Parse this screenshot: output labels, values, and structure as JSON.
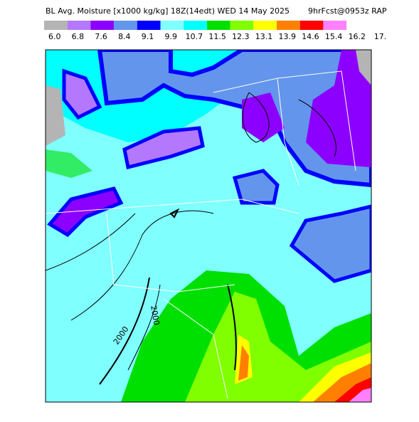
{
  "header": {
    "title": "BL Avg. Moisture [x1000 kg/kg] 18Z(14edt) WED 14 May 2025",
    "subtitle": "9hrFcst@0953z RAP"
  },
  "colorbar": [
    {
      "label": "6.0",
      "color": "#b4b4b4"
    },
    {
      "label": "6.8",
      "color": "#b478ff"
    },
    {
      "label": "7.6",
      "color": "#8c00ff"
    },
    {
      "label": "8.4",
      "color": "#6495ed"
    },
    {
      "label": "9.1",
      "color": "#0000ff"
    },
    {
      "label": "9.9",
      "color": "#80ffff"
    },
    {
      "label": "10.7",
      "color": "#00ffff"
    },
    {
      "label": "11.5",
      "color": "#00e000"
    },
    {
      "label": "12.3",
      "color": "#80ff00"
    },
    {
      "label": "13.1",
      "color": "#ffff00"
    },
    {
      "label": "13.9",
      "color": "#ff8000"
    },
    {
      "label": "14.6",
      "color": "#ff0000"
    },
    {
      "label": "15.4",
      "color": "#ff80ff"
    },
    {
      "label": "16.2",
      "color": null
    },
    {
      "label": "17.",
      "color": null
    }
  ],
  "map": {
    "contour_labels": [
      "2000",
      "2000"
    ]
  }
}
